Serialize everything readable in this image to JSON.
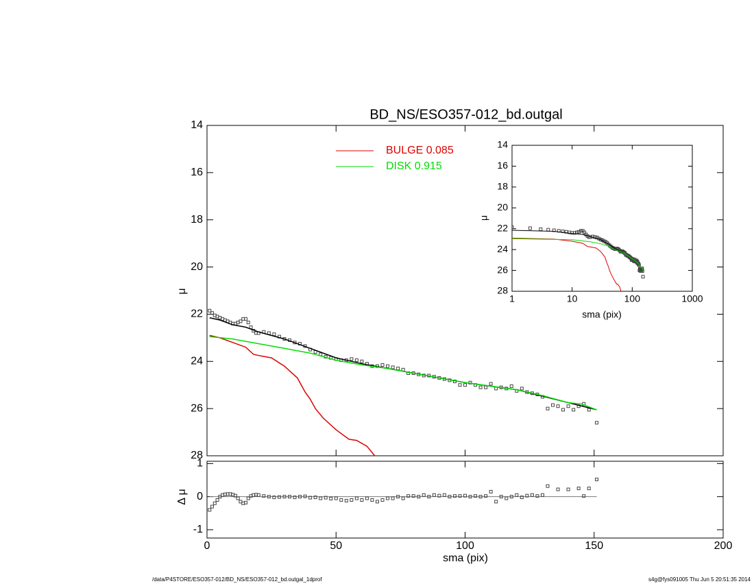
{
  "chart_data": [
    {
      "type": "line",
      "title": "BD_NS/ESO357-012_bd.outgal",
      "ylabel": "μ",
      "xlim": [
        0,
        200
      ],
      "xticks": [
        0,
        50,
        100,
        150,
        200
      ],
      "ylim": [
        28,
        14
      ],
      "yticks": [
        14,
        16,
        18,
        20,
        22,
        24,
        26,
        28
      ],
      "series": [
        {
          "marker": "square",
          "color": "#444444",
          "x": [
            1,
            2,
            3,
            4,
            5,
            6,
            7,
            8,
            9,
            10,
            11,
            12,
            13,
            14,
            15,
            16,
            17,
            18,
            19,
            20,
            22,
            24,
            26,
            28,
            30,
            32,
            34,
            36,
            38,
            40,
            42,
            44,
            46,
            48,
            50,
            52,
            54,
            56,
            58,
            60,
            62,
            64,
            66,
            68,
            70,
            72,
            74,
            76,
            78,
            80,
            82,
            84,
            86,
            88,
            90,
            92,
            94,
            96,
            98,
            100,
            102,
            104,
            106,
            108,
            110,
            112,
            114,
            116,
            118,
            120,
            122,
            124,
            126,
            128,
            130,
            132,
            134,
            136,
            138,
            140,
            142,
            144,
            146,
            148,
            151
          ],
          "values": [
            21.85,
            21.95,
            22.05,
            22.1,
            22.15,
            22.2,
            22.25,
            22.3,
            22.35,
            22.4,
            22.4,
            22.35,
            22.3,
            22.2,
            22.2,
            22.35,
            22.55,
            22.7,
            22.8,
            22.8,
            22.75,
            22.8,
            22.85,
            22.95,
            23.05,
            23.1,
            23.2,
            23.25,
            23.35,
            23.5,
            23.6,
            23.7,
            23.8,
            23.85,
            23.9,
            23.95,
            23.95,
            23.9,
            23.95,
            24.0,
            24.1,
            24.2,
            24.2,
            24.15,
            24.2,
            24.25,
            24.3,
            24.35,
            24.5,
            24.5,
            24.55,
            24.6,
            24.6,
            24.65,
            24.7,
            24.75,
            24.8,
            24.85,
            25.0,
            25.0,
            24.9,
            25.0,
            25.1,
            25.1,
            24.95,
            25.15,
            25.1,
            25.15,
            25.05,
            25.25,
            25.15,
            25.3,
            25.35,
            25.4,
            25.5,
            26.0,
            25.85,
            25.9,
            26.05,
            25.9,
            26.05,
            25.9,
            25.8,
            26.05,
            26.6
          ]
        },
        {
          "color": "#000000",
          "x": [
            1,
            5,
            10,
            15,
            20,
            30,
            40,
            50,
            60,
            70,
            80,
            90,
            100,
            120,
            140,
            151
          ],
          "values": [
            22.15,
            22.25,
            22.45,
            22.55,
            22.75,
            23.05,
            23.45,
            23.85,
            24.1,
            24.3,
            24.5,
            24.7,
            24.9,
            25.2,
            25.75,
            26.05
          ]
        },
        {
          "name": "BULGE  0.085",
          "color": "#dd0000",
          "x": [
            1,
            5,
            10,
            15,
            18,
            20,
            25,
            30,
            35,
            38,
            40,
            42,
            45,
            50,
            55,
            58,
            62,
            65,
            67
          ],
          "values": [
            22.9,
            23.0,
            23.2,
            23.4,
            23.7,
            23.75,
            23.85,
            24.2,
            24.7,
            25.3,
            25.6,
            26.0,
            26.4,
            26.9,
            27.3,
            27.35,
            27.6,
            28.0,
            28.2
          ]
        },
        {
          "name": "DISK  0.915",
          "color": "#00dd00",
          "x": [
            1,
            10,
            20,
            30,
            40,
            50,
            60,
            70,
            80,
            90,
            100,
            110,
            120,
            130,
            135,
            140,
            145,
            151
          ],
          "values": [
            22.95,
            23.05,
            23.25,
            23.45,
            23.65,
            23.95,
            24.15,
            24.3,
            24.5,
            24.7,
            24.9,
            25.05,
            25.2,
            25.45,
            25.6,
            25.75,
            25.8,
            26.05
          ]
        }
      ]
    },
    {
      "type": "scatter",
      "ylabel": "Δ μ",
      "xlabel": "sma (pix)",
      "xlim": [
        0,
        200
      ],
      "xticks": [
        0,
        50,
        100,
        150,
        200
      ],
      "ylim": [
        -1.25,
        1.07
      ],
      "yticks": [
        -1,
        0,
        1
      ],
      "color": "#444444",
      "x": [
        1,
        2,
        3,
        4,
        5,
        6,
        7,
        8,
        9,
        10,
        11,
        12,
        13,
        14,
        15,
        16,
        17,
        18,
        19,
        20,
        22,
        24,
        26,
        28,
        30,
        32,
        34,
        36,
        38,
        40,
        42,
        44,
        46,
        48,
        50,
        52,
        54,
        56,
        58,
        60,
        62,
        64,
        66,
        68,
        70,
        72,
        74,
        76,
        78,
        80,
        82,
        84,
        86,
        88,
        90,
        92,
        94,
        96,
        98,
        100,
        102,
        104,
        106,
        108,
        110,
        112,
        114,
        116,
        118,
        120,
        122,
        124,
        126,
        128,
        130,
        132,
        136,
        140,
        144,
        146,
        148,
        151
      ],
      "values": [
        -0.4,
        -0.3,
        -0.2,
        -0.1,
        0,
        0.05,
        0.07,
        0.08,
        0.08,
        0.06,
        0.03,
        -0.05,
        -0.15,
        -0.2,
        -0.18,
        -0.05,
        0.02,
        0.05,
        0.06,
        0.05,
        0.02,
        0,
        -0.02,
        -0.01,
        0,
        0,
        -0.02,
        0,
        0.01,
        -0.03,
        -0.02,
        -0.05,
        -0.03,
        -0.06,
        -0.05,
        -0.1,
        -0.12,
        -0.1,
        -0.05,
        -0.1,
        -0.05,
        -0.1,
        -0.15,
        -0.1,
        -0.05,
        -0.05,
        0,
        -0.05,
        0.02,
        0.02,
        0.0,
        0.05,
        0.0,
        0.05,
        0.03,
        0.05,
        0.0,
        0.02,
        0.02,
        0.03,
        0.0,
        0.02,
        0.0,
        0.02,
        0.15,
        -0.15,
        0.0,
        -0.05,
        0.0,
        0.05,
        -0.02,
        0.03,
        0.05,
        0.02,
        0.05,
        0.32,
        0.22,
        0.22,
        0.25,
        0.02,
        0.25,
        0.52
      ]
    },
    {
      "type": "line",
      "xlabel": "sma (pix)",
      "ylabel": "μ",
      "log_x": true,
      "xlim": [
        1,
        1000
      ],
      "xticks": [
        1,
        10,
        100,
        1000
      ],
      "ylim": [
        28,
        14
      ],
      "yticks": [
        14,
        16,
        18,
        20,
        22,
        24,
        26,
        28
      ]
    }
  ],
  "footer": {
    "left": "/data/P4STORE/ESO357-012/BD_NS/ESO357-012_bd.outgal_1dprof",
    "right": "s4g@fys091005  Thu Jun  5 20:51:35 2014"
  }
}
